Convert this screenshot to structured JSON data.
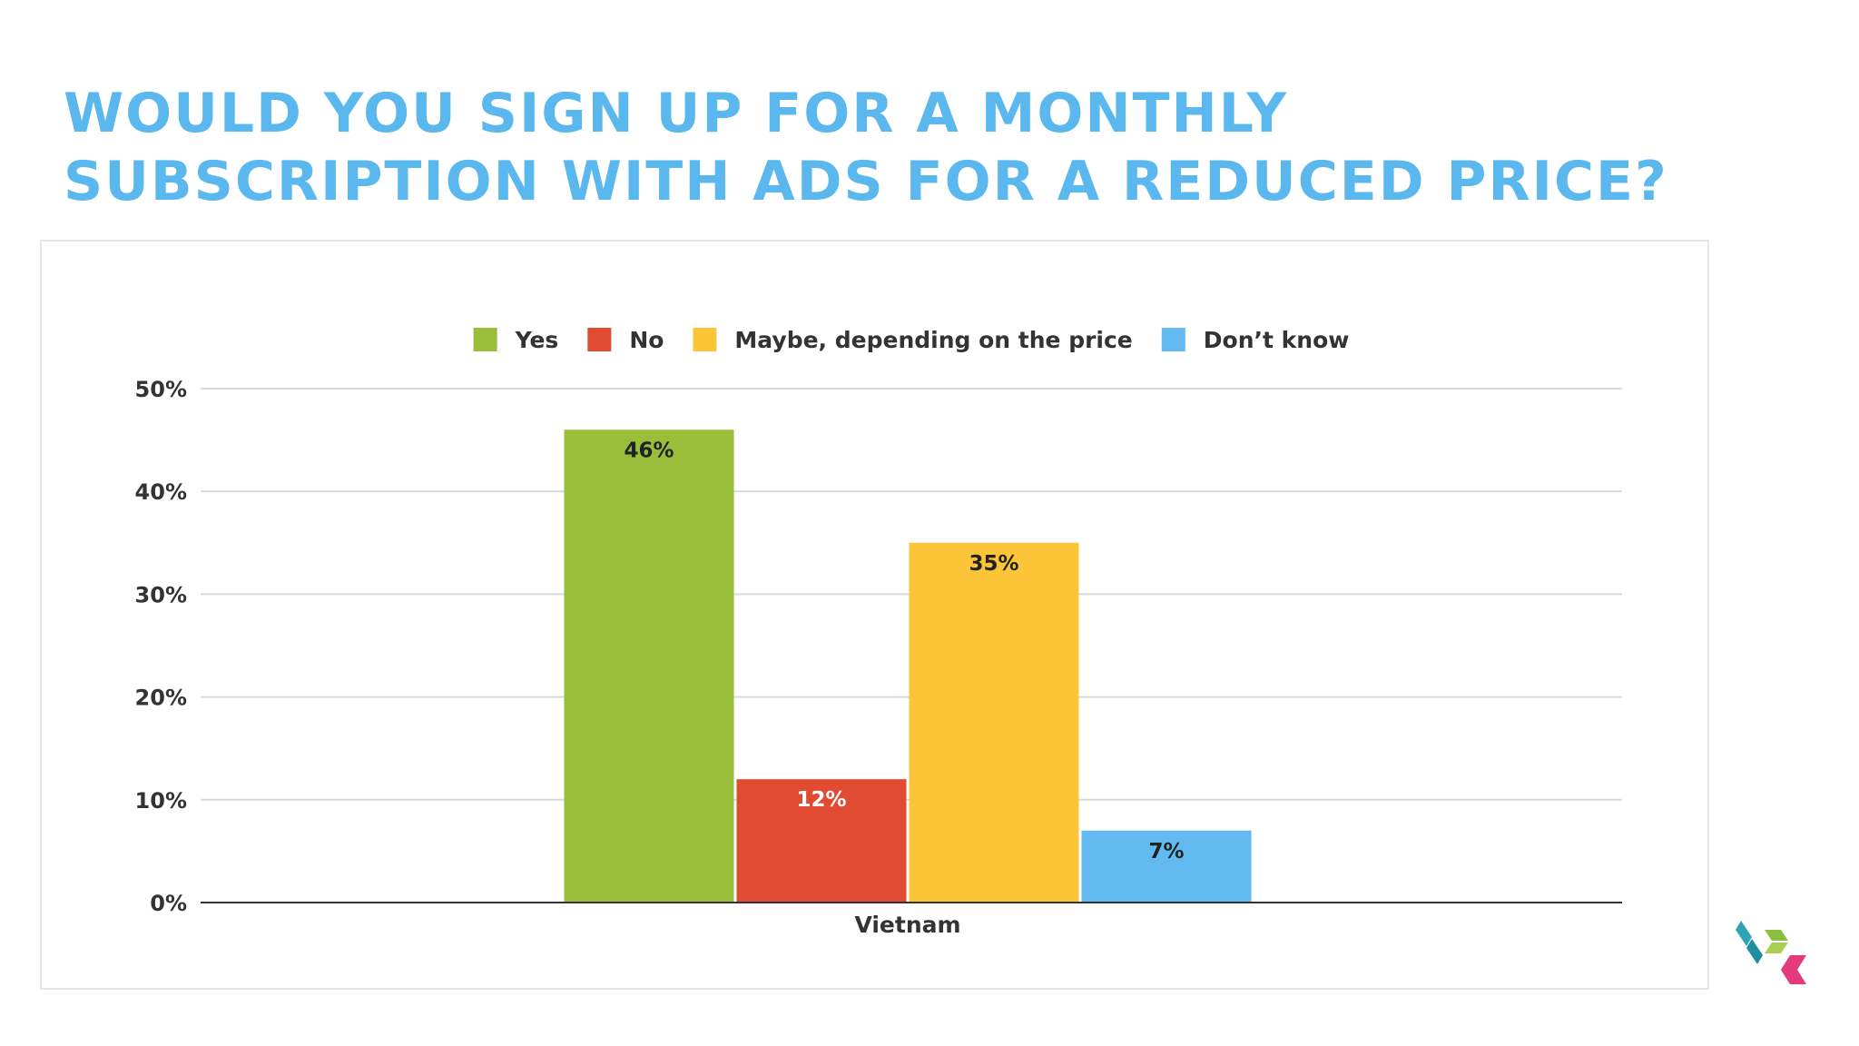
{
  "slide": {
    "title_lines": [
      "WOULD YOU SIGN UP FOR A MONTHLY",
      "SUBSCRIPTION WITH ADS FOR A REDUCED PRICE?"
    ],
    "title_color": "#5ab8ef"
  },
  "logo": {
    "icon": "brand-logo-icon",
    "colors": [
      "#2ea3b5",
      "#8dbf3f",
      "#e23a7b"
    ]
  },
  "chart_data": {
    "type": "bar",
    "categories": [
      "Vietnam"
    ],
    "series": [
      {
        "name": "Yes",
        "values": [
          46
        ],
        "label": "46%",
        "color": "#98be3a",
        "label_color": "#222222"
      },
      {
        "name": "No",
        "values": [
          12
        ],
        "label": "12%",
        "color": "#e04b31",
        "label_color": "#ffffff"
      },
      {
        "name": "Maybe, depending on the price",
        "values": [
          35
        ],
        "label": "35%",
        "color": "#fbc537",
        "label_color": "#222222"
      },
      {
        "name": "Don’t know",
        "values": [
          7
        ],
        "label": "7%",
        "color": "#62baf0",
        "label_color": "#222222"
      }
    ],
    "y_ticks": [
      "0%",
      "10%",
      "20%",
      "30%",
      "40%",
      "50%"
    ],
    "ylim": [
      0,
      50
    ],
    "grid": true,
    "legend": "top",
    "xlabel": "",
    "ylabel": ""
  }
}
